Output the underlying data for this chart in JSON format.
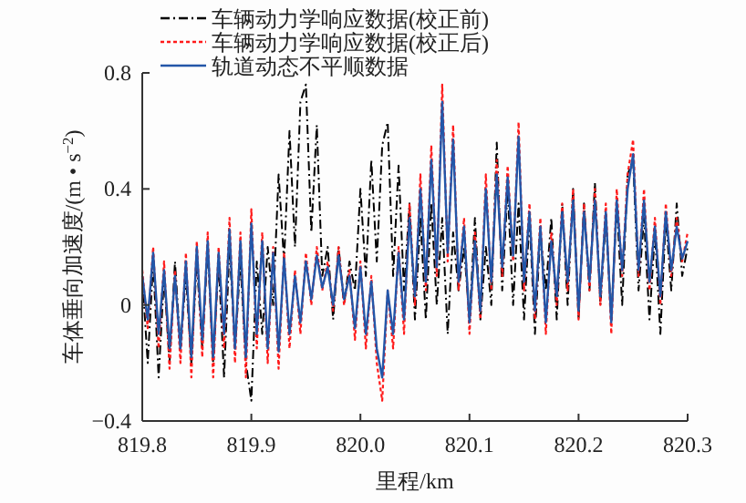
{
  "chart_data": {
    "type": "line",
    "xlabel": "里程/km",
    "ylabel": "车体垂向加速度/(m • s$^{−2}$)",
    "x": [
      819.8,
      819.805,
      819.81,
      819.815,
      819.82,
      819.825,
      819.83,
      819.835,
      819.84,
      819.845,
      819.85,
      819.855,
      819.86,
      819.865,
      819.87,
      819.875,
      819.88,
      819.885,
      819.89,
      819.895,
      819.9,
      819.905,
      819.91,
      819.915,
      819.92,
      819.925,
      819.93,
      819.935,
      819.94,
      819.945,
      819.95,
      819.955,
      819.96,
      819.965,
      819.97,
      819.975,
      819.98,
      819.985,
      819.99,
      819.995,
      820.0,
      820.005,
      820.01,
      820.015,
      820.02,
      820.025,
      820.03,
      820.035,
      820.04,
      820.045,
      820.05,
      820.055,
      820.06,
      820.065,
      820.07,
      820.075,
      820.08,
      820.085,
      820.09,
      820.095,
      820.1,
      820.105,
      820.11,
      820.115,
      820.12,
      820.125,
      820.13,
      820.135,
      820.14,
      820.145,
      820.15,
      820.155,
      820.16,
      820.165,
      820.17,
      820.175,
      820.18,
      820.185,
      820.19,
      820.195,
      820.2,
      820.205,
      820.21,
      820.215,
      820.22,
      820.225,
      820.23,
      820.235,
      820.24,
      820.245,
      820.25,
      820.255,
      820.26,
      820.265,
      820.27,
      820.275,
      820.28,
      820.285,
      820.29,
      820.295,
      820.3
    ],
    "series": [
      {
        "name": "车辆动力学响应数据(校正前)",
        "color": "#000000",
        "line_style": "dashed",
        "values": [
          0.1,
          -0.2,
          0.15,
          -0.25,
          0.1,
          -0.2,
          0.15,
          -0.15,
          0.1,
          -0.2,
          0.15,
          -0.15,
          0.2,
          -0.2,
          0.15,
          -0.25,
          0.2,
          -0.15,
          0.15,
          -0.2,
          -0.33,
          0.15,
          -0.1,
          0.2,
          0.0,
          0.45,
          0.15,
          0.6,
          0.2,
          0.7,
          0.76,
          0.25,
          0.62,
          0.1,
          0.2,
          -0.05,
          0.2,
          0.0,
          0.15,
          0.05,
          0.4,
          0.1,
          0.5,
          0.15,
          0.55,
          0.63,
          0.1,
          0.48,
          0.05,
          0.35,
          -0.05,
          0.3,
          -0.05,
          0.35,
          0.0,
          0.3,
          -0.1,
          0.25,
          0.05,
          0.2,
          -0.05,
          0.3,
          -0.05,
          0.2,
          0.0,
          0.56,
          0.05,
          0.4,
          0.0,
          0.35,
          -0.05,
          0.3,
          -0.1,
          0.25,
          0.05,
          0.3,
          -0.05,
          0.35,
          0.0,
          0.4,
          -0.05,
          0.35,
          0.05,
          0.42,
          0.0,
          0.3,
          -0.05,
          0.35,
          0.0,
          0.45,
          0.5,
          0.05,
          0.3,
          -0.05,
          0.25,
          -0.1,
          0.3,
          0.05,
          0.35,
          0.1,
          0.2
        ]
      },
      {
        "name": "车辆动力学响应数据(校正后)",
        "color": "#ff1a1a",
        "line_style": "dotted",
        "values": [
          0.12,
          -0.08,
          0.2,
          -0.15,
          0.15,
          -0.22,
          0.12,
          -0.2,
          0.18,
          -0.25,
          0.22,
          -0.18,
          0.25,
          -0.25,
          0.2,
          -0.15,
          0.3,
          -0.2,
          0.25,
          -0.25,
          0.33,
          -0.15,
          0.25,
          -0.2,
          0.2,
          -0.22,
          0.18,
          -0.15,
          0.12,
          -0.1,
          0.18,
          0.0,
          0.2,
          0.05,
          0.15,
          -0.02,
          0.2,
          0.0,
          0.12,
          -0.12,
          0.15,
          -0.15,
          0.1,
          -0.2,
          -0.33,
          0.05,
          -0.15,
          0.2,
          -0.1,
          0.35,
          0.0,
          0.45,
          0.05,
          0.55,
          0.1,
          0.76,
          0.15,
          0.62,
          0.05,
          0.3,
          -0.1,
          0.25,
          -0.05,
          0.45,
          0.05,
          0.5,
          0.1,
          0.48,
          0.15,
          0.63,
          0.05,
          0.35,
          -0.05,
          0.3,
          -0.1,
          0.25,
          0.0,
          0.35,
          0.05,
          0.4,
          -0.05,
          0.35,
          0.05,
          0.4,
          0.0,
          0.35,
          -0.1,
          0.4,
          0.1,
          0.45,
          0.57,
          0.1,
          0.4,
          0.05,
          0.3,
          0.0,
          0.35,
          0.1,
          0.3,
          0.15,
          0.25
        ]
      },
      {
        "name": "轨道动态不平顺数据",
        "color": "#2356a8",
        "line_style": "solid",
        "values": [
          0.1,
          -0.05,
          0.18,
          -0.1,
          0.12,
          -0.15,
          0.1,
          -0.15,
          0.15,
          -0.18,
          0.2,
          -0.12,
          0.22,
          -0.18,
          0.18,
          -0.1,
          0.26,
          -0.15,
          0.22,
          -0.18,
          0.28,
          -0.1,
          0.22,
          -0.15,
          0.18,
          -0.16,
          0.16,
          -0.1,
          0.1,
          -0.06,
          0.15,
          0.02,
          0.17,
          0.06,
          0.13,
          0.0,
          0.17,
          0.02,
          0.1,
          -0.08,
          0.13,
          -0.1,
          0.08,
          -0.15,
          -0.25,
          0.05,
          -0.1,
          0.18,
          -0.05,
          0.3,
          0.03,
          0.4,
          0.08,
          0.5,
          0.13,
          0.7,
          0.18,
          0.57,
          0.08,
          0.27,
          -0.06,
          0.22,
          -0.02,
          0.4,
          0.08,
          0.45,
          0.13,
          0.44,
          0.17,
          0.58,
          0.08,
          0.32,
          -0.02,
          0.27,
          -0.06,
          0.22,
          0.03,
          0.32,
          0.08,
          0.36,
          -0.02,
          0.32,
          0.08,
          0.36,
          0.03,
          0.32,
          -0.06,
          0.36,
          0.12,
          0.4,
          0.52,
          0.12,
          0.36,
          0.08,
          0.27,
          0.03,
          0.32,
          0.12,
          0.27,
          0.16,
          0.22
        ]
      }
    ],
    "xlim": [
      819.8,
      820.3
    ],
    "xticks": [
      819.8,
      819.9,
      {
        "value": 820.0,
        "label": "820.0"
      },
      820.1,
      820.2,
      820.3
    ],
    "ylim": [
      -0.4,
      0.8
    ],
    "yticks": [
      {
        "value": -0.4,
        "label": "−0.4"
      },
      0,
      0.4,
      0.8
    ],
    "grid": false,
    "legend": "top"
  }
}
